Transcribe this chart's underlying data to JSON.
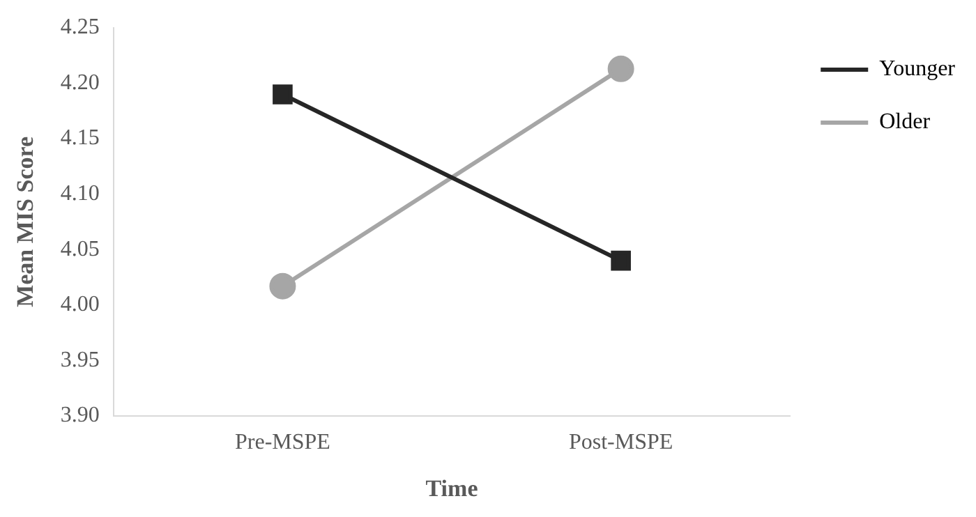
{
  "chart_data": {
    "type": "line",
    "xlabel": "Time",
    "ylabel": "Mean MIS Score",
    "categories": [
      "Pre-MSPE",
      "Post-MSPE"
    ],
    "series": [
      {
        "name": "Younger",
        "color": "#262626",
        "marker": "square",
        "values": [
          4.19,
          4.04
        ]
      },
      {
        "name": "Older",
        "color": "#a6a6a6",
        "marker": "circle",
        "values": [
          4.017,
          4.213
        ]
      }
    ],
    "ylim": [
      3.9,
      4.25
    ],
    "yticks": [
      {
        "value": 3.9,
        "label": "3.90"
      },
      {
        "value": 3.95,
        "label": "3.95"
      },
      {
        "value": 4.0,
        "label": "4.00"
      },
      {
        "value": 4.05,
        "label": "4.05"
      },
      {
        "value": 4.1,
        "label": "4.10"
      },
      {
        "value": 4.15,
        "label": "4.15"
      },
      {
        "value": 4.2,
        "label": "4.20"
      },
      {
        "value": 4.25,
        "label": "4.25"
      }
    ],
    "grid": false,
    "legend": "top right",
    "line_style": "solid"
  }
}
